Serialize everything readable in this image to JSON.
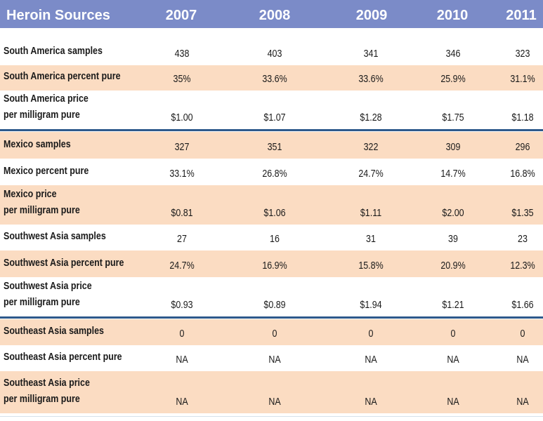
{
  "chart_data": {
    "type": "table",
    "title": "Heroin Sources",
    "columns": [
      "2007",
      "2008",
      "2009",
      "2010",
      "2011"
    ],
    "rows": [
      {
        "label": "South America samples",
        "values": [
          "438",
          "403",
          "341",
          "346",
          "323"
        ]
      },
      {
        "label": "South America percent pure",
        "values": [
          "35%",
          "33.6%",
          "33.6%",
          "25.9%",
          "31.1%"
        ]
      },
      {
        "label": "South America price\nper milligram pure",
        "values": [
          "$1.00",
          "$1.07",
          "$1.28",
          "$1.75",
          "$1.18"
        ]
      },
      {
        "label": "Mexico samples",
        "values": [
          "327",
          "351",
          "322",
          "309",
          "296"
        ]
      },
      {
        "label": "Mexico percent pure",
        "values": [
          "33.1%",
          "26.8%",
          "24.7%",
          "14.7%",
          "16.8%"
        ]
      },
      {
        "label": "Mexico price\nper milligram pure",
        "values": [
          "$0.81",
          "$1.06",
          "$1.11",
          "$2.00",
          "$1.35"
        ]
      },
      {
        "label": "Southwest Asia samples",
        "values": [
          "27",
          "16",
          "31",
          "39",
          "23"
        ]
      },
      {
        "label": "Southwest Asia percent pure",
        "values": [
          "24.7%",
          "16.9%",
          "15.8%",
          "20.9%",
          "12.3%"
        ]
      },
      {
        "label": "Southwest Asia price\nper milligram pure",
        "values": [
          "$0.93",
          "$0.89",
          "$1.94",
          "$1.21",
          "$1.66"
        ]
      },
      {
        "label": "Southeast Asia samples",
        "values": [
          "0",
          "0",
          "0",
          "0",
          "0"
        ]
      },
      {
        "label": "Southeast Asia percent pure",
        "values": [
          "NA",
          "NA",
          "NA",
          "NA",
          "NA"
        ]
      },
      {
        "label": "Southeast Asia price\nper milligram pure",
        "values": [
          "NA",
          "NA",
          "NA",
          "NA",
          "NA"
        ]
      }
    ]
  },
  "colors": {
    "header_bg": "#7b8bc8",
    "row_shade": "#fbdcc2",
    "divider": "#2e5a8c"
  }
}
